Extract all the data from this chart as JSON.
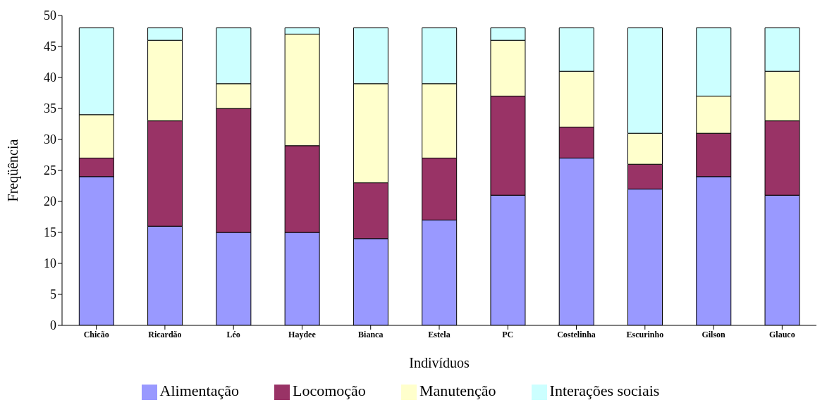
{
  "chart_data": {
    "type": "bar",
    "stacked": true,
    "xlabel": "Indivíduos",
    "ylabel": "Freqüência",
    "categories": [
      "Chicão",
      "Ricardão",
      "Léo",
      "Haydee",
      "Bianca",
      "Estela",
      "PC",
      "Costelinha",
      "Escurinho",
      "Gilson",
      "Glauco"
    ],
    "series": [
      {
        "name": "Alimentação",
        "color": "#9999ff",
        "values": [
          24,
          16,
          15,
          15,
          14,
          17,
          21,
          27,
          22,
          24,
          21
        ]
      },
      {
        "name": "Locomoção",
        "color": "#993366",
        "values": [
          3,
          17,
          20,
          14,
          9,
          10,
          16,
          5,
          4,
          7,
          12
        ]
      },
      {
        "name": "Manutenção",
        "color": "#ffffcc",
        "values": [
          7,
          13,
          4,
          18,
          16,
          12,
          9,
          9,
          5,
          6,
          8
        ]
      },
      {
        "name": "Interações sociais",
        "color": "#ccffff",
        "values": [
          14,
          2,
          9,
          1,
          9,
          9,
          2,
          7,
          17,
          11,
          7
        ]
      }
    ],
    "ylim": [
      0,
      50
    ],
    "yticks": [
      0,
      5,
      10,
      15,
      20,
      25,
      30,
      35,
      40,
      45,
      50
    ],
    "grid": false,
    "legend": "bottom"
  }
}
